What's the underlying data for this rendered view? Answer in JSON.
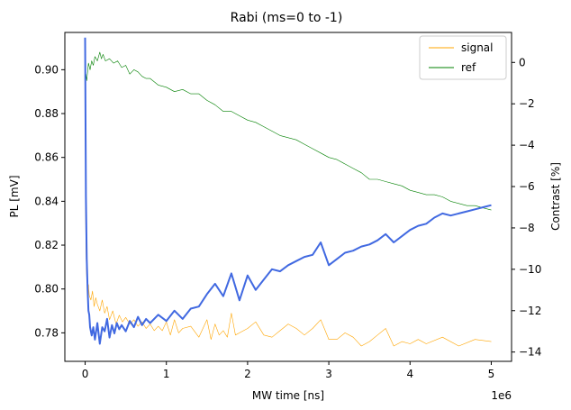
{
  "chart_data": {
    "type": "line",
    "title": "Rabi (ms=0 to -1)",
    "xlabel": "MW time [ns]",
    "ylabel": "PL [mV]",
    "y2label": "Contrast [%]",
    "x_scale_label": "1e6",
    "xlim": [
      -0.25,
      5.25
    ],
    "ylim": [
      0.767,
      0.917
    ],
    "y2lim": [
      -14.45,
      1.45
    ],
    "x_ticks": [
      0,
      1,
      2,
      3,
      4,
      5
    ],
    "y_ticks": [
      0.78,
      0.8,
      0.82,
      0.84,
      0.86,
      0.88,
      0.9
    ],
    "y_tick_labels": [
      "0.78",
      "0.80",
      "0.82",
      "0.84",
      "0.86",
      "0.88",
      "0.90"
    ],
    "y2_ticks": [
      0,
      -2,
      -4,
      -6,
      -8,
      -10,
      -12,
      -14
    ],
    "legend_position": "top-right",
    "series": [
      {
        "name": "signal",
        "axis": "left",
        "color": "#FFA500",
        "x": [
          0,
          0.005,
          0.01,
          0.015,
          0.02,
          0.03,
          0.04,
          0.05,
          0.07,
          0.09,
          0.11,
          0.13,
          0.15,
          0.18,
          0.21,
          0.24,
          0.27,
          0.3,
          0.34,
          0.38,
          0.42,
          0.46,
          0.5,
          0.55,
          0.6,
          0.65,
          0.7,
          0.75,
          0.8,
          0.85,
          0.9,
          0.95,
          1.0,
          1.05,
          1.1,
          1.15,
          1.2,
          1.3,
          1.4,
          1.5,
          1.55,
          1.6,
          1.65,
          1.7,
          1.75,
          1.8,
          1.85,
          1.9,
          2.0,
          2.1,
          2.2,
          2.3,
          2.4,
          2.5,
          2.6,
          2.7,
          2.8,
          2.9,
          3.0,
          3.1,
          3.2,
          3.3,
          3.4,
          3.5,
          3.6,
          3.7,
          3.8,
          3.9,
          4.0,
          4.1,
          4.2,
          4.4,
          4.6,
          4.8,
          5.0
        ],
        "values": [
          0.89,
          0.84,
          0.82,
          0.81,
          0.805,
          0.8,
          0.802,
          0.797,
          0.795,
          0.799,
          0.792,
          0.796,
          0.793,
          0.79,
          0.795,
          0.789,
          0.792,
          0.786,
          0.79,
          0.784,
          0.788,
          0.785,
          0.787,
          0.784,
          0.786,
          0.783,
          0.785,
          0.782,
          0.784,
          0.781,
          0.783,
          0.781,
          0.785,
          0.779,
          0.786,
          0.78,
          0.782,
          0.783,
          0.778,
          0.786,
          0.777,
          0.784,
          0.779,
          0.781,
          0.778,
          0.789,
          0.779,
          0.78,
          0.782,
          0.785,
          0.779,
          0.778,
          0.781,
          0.784,
          0.782,
          0.779,
          0.782,
          0.786,
          0.777,
          0.777,
          0.78,
          0.778,
          0.774,
          0.776,
          0.779,
          0.782,
          0.774,
          0.776,
          0.775,
          0.777,
          0.775,
          0.778,
          0.774,
          0.777,
          0.776
        ]
      },
      {
        "name": "ref",
        "axis": "left",
        "color": "#008000",
        "x": [
          0,
          0.01,
          0.02,
          0.04,
          0.06,
          0.08,
          0.1,
          0.12,
          0.15,
          0.18,
          0.2,
          0.22,
          0.25,
          0.3,
          0.35,
          0.4,
          0.45,
          0.5,
          0.55,
          0.6,
          0.65,
          0.7,
          0.75,
          0.8,
          0.9,
          1.0,
          1.1,
          1.2,
          1.3,
          1.4,
          1.5,
          1.6,
          1.7,
          1.8,
          1.9,
          2.0,
          2.1,
          2.2,
          2.3,
          2.4,
          2.5,
          2.6,
          2.7,
          2.8,
          2.9,
          3.0,
          3.1,
          3.2,
          3.3,
          3.4,
          3.5,
          3.6,
          3.7,
          3.8,
          3.9,
          4.0,
          4.1,
          4.2,
          4.3,
          4.4,
          4.5,
          4.6,
          4.7,
          4.8,
          4.9,
          5.0
        ],
        "values": [
          0.885,
          0.898,
          0.895,
          0.903,
          0.9,
          0.904,
          0.902,
          0.906,
          0.904,
          0.908,
          0.905,
          0.907,
          0.904,
          0.905,
          0.903,
          0.904,
          0.901,
          0.902,
          0.898,
          0.9,
          0.899,
          0.897,
          0.896,
          0.896,
          0.893,
          0.892,
          0.89,
          0.891,
          0.889,
          0.889,
          0.886,
          0.884,
          0.881,
          0.881,
          0.879,
          0.877,
          0.876,
          0.874,
          0.872,
          0.87,
          0.869,
          0.868,
          0.866,
          0.864,
          0.862,
          0.86,
          0.859,
          0.857,
          0.855,
          0.853,
          0.85,
          0.85,
          0.849,
          0.848,
          0.847,
          0.845,
          0.844,
          0.843,
          0.843,
          0.842,
          0.84,
          0.839,
          0.838,
          0.838,
          0.837,
          0.836
        ]
      },
      {
        "name": "Contrast",
        "axis": "right",
        "color": "#4169E1",
        "x": [
          0,
          0.01,
          0.02,
          0.03,
          0.04,
          0.05,
          0.06,
          0.08,
          0.1,
          0.12,
          0.15,
          0.18,
          0.21,
          0.24,
          0.27,
          0.3,
          0.33,
          0.36,
          0.39,
          0.42,
          0.45,
          0.5,
          0.55,
          0.6,
          0.65,
          0.7,
          0.75,
          0.8,
          0.9,
          1.0,
          1.1,
          1.2,
          1.3,
          1.4,
          1.5,
          1.6,
          1.7,
          1.8,
          1.9,
          2.0,
          2.1,
          2.2,
          2.3,
          2.4,
          2.5,
          2.6,
          2.7,
          2.8,
          2.9,
          3.0,
          3.1,
          3.2,
          3.3,
          3.4,
          3.5,
          3.6,
          3.7,
          3.8,
          3.9,
          4.0,
          4.1,
          4.2,
          4.3,
          4.4,
          4.5,
          4.6,
          4.7,
          4.8,
          4.9,
          5.0
        ],
        "values": [
          1.2,
          -6.5,
          -9.5,
          -11.0,
          -12.0,
          -12.2,
          -12.8,
          -13.2,
          -12.8,
          -13.4,
          -12.6,
          -13.6,
          -12.8,
          -13.0,
          -12.4,
          -13.3,
          -12.7,
          -13.1,
          -12.6,
          -12.9,
          -12.7,
          -13.0,
          -12.5,
          -12.8,
          -12.3,
          -12.7,
          -12.4,
          -12.6,
          -12.2,
          -12.5,
          -12.0,
          -12.4,
          -11.9,
          -11.8,
          -11.2,
          -10.7,
          -11.3,
          -10.2,
          -11.5,
          -10.3,
          -11.0,
          -10.5,
          -10.0,
          -10.1,
          -9.8,
          -9.6,
          -9.4,
          -9.3,
          -8.7,
          -9.8,
          -9.5,
          -9.2,
          -9.1,
          -8.9,
          -8.8,
          -8.6,
          -8.3,
          -8.7,
          -8.4,
          -8.1,
          -7.9,
          -7.8,
          -7.5,
          -7.3,
          -7.4,
          -7.3,
          -7.2,
          -7.1,
          -7.0,
          -6.9
        ]
      }
    ]
  }
}
